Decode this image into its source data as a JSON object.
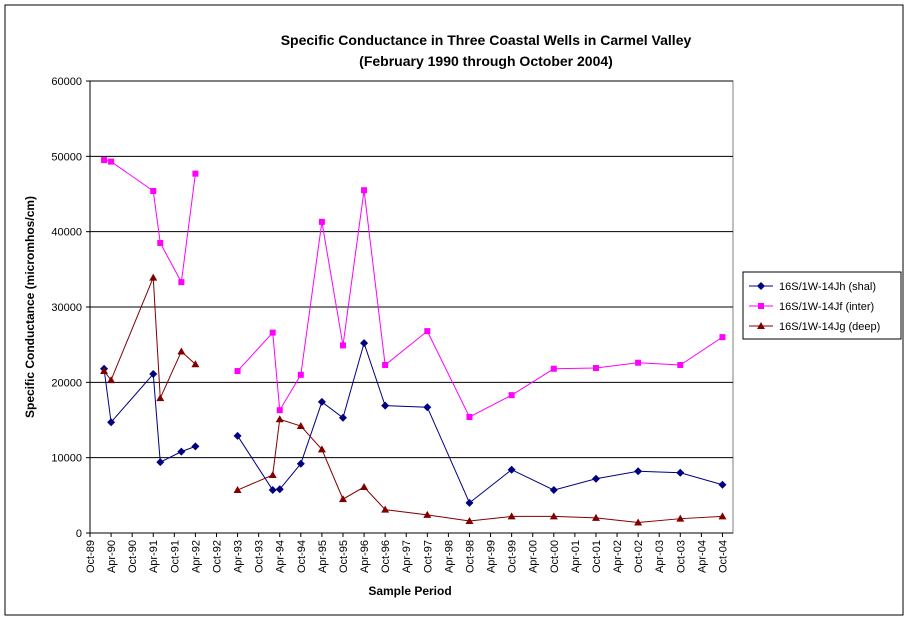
{
  "chart_data": {
    "type": "line",
    "title": "Specific Conductance in Three Coastal Wells in Carmel Valley",
    "subtitle": "(February 1990 through October 2004)",
    "x_label": "Sample Period",
    "y_label": "Specific Conductance (micromhos/cm)",
    "x": [
      "1990-02",
      "1990-04",
      "1991-04",
      "1991-06",
      "1991-12",
      "1992-04",
      "1992-10",
      "1993-04",
      "1994-02",
      "1994-04",
      "1994-10",
      "1995-04",
      "1995-10",
      "1996-04",
      "1996-10",
      "1997-10",
      "1998-10",
      "1999-10",
      "2000-10",
      "2001-10",
      "2002-10",
      "2003-10",
      "2004-10"
    ],
    "series": [
      {
        "name": "16S/1W-14Jh (shal)",
        "color": "#000080",
        "marker": "diamond",
        "values": [
          21800,
          14700,
          21100,
          9400,
          10800,
          11500,
          null,
          12900,
          5700,
          5800,
          9200,
          17400,
          15300,
          25200,
          16900,
          16700,
          4000,
          8400,
          5700,
          7200,
          8200,
          8000,
          6400
        ]
      },
      {
        "name": "16S/1W-14Jf (inter)",
        "color": "#ff00ff",
        "marker": "square",
        "values": [
          49500,
          49300,
          45400,
          38500,
          33300,
          47700,
          null,
          21500,
          26600,
          16300,
          21000,
          41300,
          24900,
          45500,
          22300,
          26800,
          15400,
          18300,
          21800,
          21900,
          22600,
          22300,
          26000
        ]
      },
      {
        "name": "16S/1W-14Jg (deep)",
        "color": "#800000",
        "marker": "triangle",
        "values": [
          21500,
          20300,
          33900,
          17900,
          24100,
          22400,
          null,
          5700,
          7700,
          15100,
          14200,
          11100,
          4500,
          6100,
          3100,
          2400,
          1600,
          2200,
          2200,
          2000,
          1400,
          1900,
          2200
        ]
      }
    ],
    "xlim": [
      "1989-10",
      "2005-01"
    ],
    "xticks": [
      {
        "value": "1989-10",
        "label": "Oct-89"
      },
      {
        "value": "1990-04",
        "label": "Apr-90"
      },
      {
        "value": "1990-10",
        "label": "Oct-90"
      },
      {
        "value": "1991-04",
        "label": "Apr-91"
      },
      {
        "value": "1991-10",
        "label": "Oct-91"
      },
      {
        "value": "1992-04",
        "label": "Apr-92"
      },
      {
        "value": "1992-10",
        "label": "Oct-92"
      },
      {
        "value": "1993-04",
        "label": "Apr-93"
      },
      {
        "value": "1993-10",
        "label": "Oct-93"
      },
      {
        "value": "1994-04",
        "label": "Apr-94"
      },
      {
        "value": "1994-10",
        "label": "Oct-94"
      },
      {
        "value": "1995-04",
        "label": "Apr-95"
      },
      {
        "value": "1995-10",
        "label": "Oct-95"
      },
      {
        "value": "1996-04",
        "label": "Apr-96"
      },
      {
        "value": "1996-10",
        "label": "Oct-96"
      },
      {
        "value": "1997-04",
        "label": "Apr-97"
      },
      {
        "value": "1997-10",
        "label": "Oct-97"
      },
      {
        "value": "1998-04",
        "label": "Apr-98"
      },
      {
        "value": "1998-10",
        "label": "Oct-98"
      },
      {
        "value": "1999-04",
        "label": "Apr-99"
      },
      {
        "value": "1999-10",
        "label": "Oct-99"
      },
      {
        "value": "2000-04",
        "label": "Apr-00"
      },
      {
        "value": "2000-10",
        "label": "Oct-00"
      },
      {
        "value": "2001-04",
        "label": "Apr-01"
      },
      {
        "value": "2001-10",
        "label": "Oct-01"
      },
      {
        "value": "2002-04",
        "label": "Apr-02"
      },
      {
        "value": "2002-10",
        "label": "Oct-02"
      },
      {
        "value": "2003-04",
        "label": "Apr-03"
      },
      {
        "value": "2003-10",
        "label": "Oct-03"
      },
      {
        "value": "2004-04",
        "label": "Apr-04"
      },
      {
        "value": "2004-10",
        "label": "Oct-04"
      }
    ],
    "ylim": [
      0,
      60000
    ],
    "yticks": [
      0,
      10000,
      20000,
      30000,
      40000,
      50000,
      60000
    ],
    "grid": true,
    "legend": "right"
  }
}
